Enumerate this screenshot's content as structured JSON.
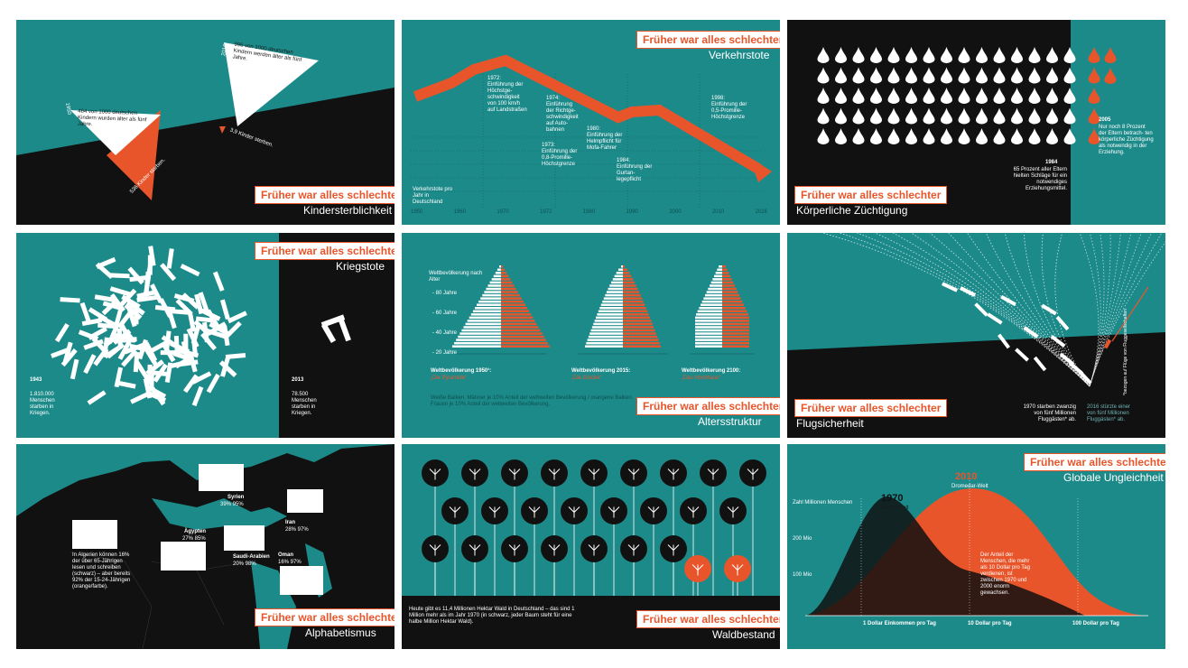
{
  "badge": "Früher war alles schlechter",
  "colors": {
    "teal": "#1d8a8a",
    "black": "#111111",
    "orange": "#e9552a",
    "white": "#ffffff"
  },
  "panels": {
    "kinder": {
      "title": "Kindersterblichkeit",
      "year1": "1950",
      "year2": "2016",
      "white1": "464 von 1000 deutschen Kindern wurden älter als fünf Jahre.",
      "white2": "996 von 1000 deutschen Kindern werden älter als fünf Jahre.",
      "orange1": "536 Kinder starben.",
      "orange2": "3,9 Kinder sterben."
    },
    "verkehr": {
      "title": "Verkehrstote",
      "note1": "1972: Einführung der Höchstge- schwindigkeit von 100 km/h auf Landstraßen",
      "note2": "1974: Einführung der Richtge- schwindigkeit auf Auto- bahnen",
      "note3": "1973: Einführung der 0,8-Promille- Höchstgrenze",
      "note4": "1980: Einführung der Helmpflicht für Mofa-Fahrer",
      "note5": "1984: Einführung der Gurtan- legepflicht",
      "note6": "1998: Einführung der 0,5-Promille- Höchstgrenze",
      "note7": "Verkehrstote pro Jahr in Deutschland",
      "axis": [
        "1950",
        "1960",
        "1970",
        "1972",
        "1980",
        "1990",
        "2000",
        "2010",
        "2016"
      ]
    },
    "zuecht": {
      "title": "Körperliche Züchtigung",
      "y1984": "1984",
      "t1984": "65 Prozent aller Eltern hielten Schläge für ein notwendiges Erziehungsmittel.",
      "y2005": "2005",
      "t2005": "Nur noch 8 Prozent der Eltern betrach- ten körperliche Züchtigung als notwendig in der Erziehung."
    },
    "krieg": {
      "title": "Kriegstote",
      "y1": "1943",
      "t1": "1.810.000 Menschen starben in Kriegen.",
      "y2": "2013",
      "t2": "78.500 Menschen starben in Kriegen."
    },
    "alter": {
      "title": "Altersstruktur",
      "ylab": "Weltbevölkerung nach Alter",
      "ticks": [
        "- 80 Jahre",
        "- 60 Jahre",
        "- 40 Jahre",
        "- 20 Jahre"
      ],
      "l1": "Weltbevölkerung 1950¹:",
      "s1": "„Die Pyramide“",
      "l2": "Weltbevölkerung 2015:",
      "s2": "„Die Glocke“",
      "l3": "Weltbevölkerung 2100:",
      "s3": "„Das Hochhaus“",
      "foot": "Weiße Balken: Männer je 10% Anteil der weltweiten Bevölkerung / orangene Balken: Frauen je 10% Anteil der weltweiten Bevölkerung."
    },
    "flug": {
      "title": "Flugsicherheit",
      "t1": "1970 starben zwanzig von fünf Millionen Fluggästen* ab.",
      "t2": "2016 stürzte einer von fünf Millionen Fluggästen* ab.",
      "note": "*bezogen auf Flüge von Fluggesellschaften"
    },
    "alpha": {
      "title": "Alphabetismus",
      "main": "In Algerien können 16% der über 65-Jährigen lesen und schreiben (schwarz) – aber bereits 92% der 15-24-Jährigen (orange/farbe).",
      "syrien": "Syrien",
      "syrienv": "39% 95%",
      "aegypten": "Ägypten",
      "aegyptenv": "27% 85%",
      "saudi": "Saudi-Arabien",
      "saudiv": "20% 98%",
      "iran": "Iran",
      "iranv": "28% 97%",
      "oman": "Oman",
      "omanv": "16% 97%"
    },
    "wald": {
      "title": "Waldbestand",
      "text": "Heute gibt es 11,4 Millionen Hektar Wald in Deutschland – das sind 1 Million mehr als im Jahr 1970 (in schwarz, jeder Baum steht für eine halbe Million Hektar Wald)."
    },
    "ungl": {
      "title": "Globale Ungleichheit",
      "y1970": "1970",
      "s1970": "Kamel Welt",
      "y2010": "2010",
      "s2010": "Dromedar-Welt",
      "ylab1": "Zahl Millionen Menschen",
      "ylab2": "200 Mio",
      "ylab3": "100 Mio",
      "x1": "1 Dollar Einkommen pro Tag",
      "x2": "10 Dollar pro Tag",
      "x3": "100 Dollar pro Tag",
      "mid": "Der Anteil der Menschen, die mehr als 10 Dollar pro Tag verdienen, ist zwischen 1970 und 2000 enorm gewachsen."
    }
  }
}
